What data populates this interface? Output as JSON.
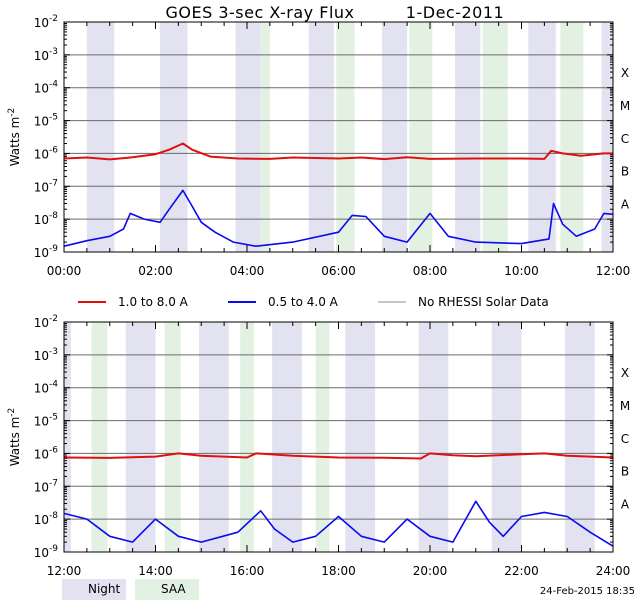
{
  "title": "GOES 3-sec X-ray Flux",
  "date": "1-Dec-2011",
  "footer_date": "24-Feb-2015 18:35",
  "colors": {
    "long": "#e01010",
    "short": "#0a0af0",
    "norhessi": "#8c8c8c",
    "night": "#e2e2f0",
    "saa": "#e3f1e3",
    "grid": "#6a6a6a"
  },
  "legend": {
    "long_label": "1.0 to 8.0 A",
    "short_label": "0.5 to 4.0 A",
    "norhessi_label": "No RHESSI Solar Data",
    "night_label": "Night",
    "saa_label": "SAA"
  },
  "chart_data": [
    {
      "type": "line",
      "panel": "top",
      "title": "GOES 3-sec X-ray Flux   1-Dec-2011",
      "ylabel": "Watts m-2",
      "yscale": "log",
      "ylim": [
        1e-09,
        0.01
      ],
      "xlim_hours": [
        0,
        12
      ],
      "xticks": [
        "00:00",
        "02:00",
        "04:00",
        "06:00",
        "08:00",
        "10:00",
        "12:00"
      ],
      "yticks": [
        {
          "base": "10",
          "exp": "-9"
        },
        {
          "base": "10",
          "exp": "-8"
        },
        {
          "base": "10",
          "exp": "-7"
        },
        {
          "base": "10",
          "exp": "-6"
        },
        {
          "base": "10",
          "exp": "-5"
        },
        {
          "base": "10",
          "exp": "-4"
        },
        {
          "base": "10",
          "exp": "-3"
        },
        {
          "base": "10",
          "exp": "-2"
        }
      ],
      "flare_classes": [
        {
          "label": "X",
          "flux": 0.0003
        },
        {
          "label": "M",
          "flux": 3e-05
        },
        {
          "label": "C",
          "flux": 3e-06
        },
        {
          "label": "B",
          "flux": 3e-07
        },
        {
          "label": "A",
          "flux": 3e-08
        }
      ],
      "night_intervals": [
        [
          0.5,
          1.1
        ],
        [
          2.1,
          2.7
        ],
        [
          3.75,
          4.3
        ],
        [
          5.35,
          5.9
        ],
        [
          6.95,
          7.5
        ],
        [
          8.55,
          9.1
        ],
        [
          10.15,
          10.75
        ],
        [
          11.75,
          12.0
        ]
      ],
      "saa_intervals": [
        [
          4.3,
          4.5
        ],
        [
          5.95,
          6.35
        ],
        [
          7.55,
          8.05
        ],
        [
          9.15,
          9.7
        ],
        [
          10.85,
          11.35
        ]
      ],
      "series": [
        {
          "name": "1.0 to 8.0 A",
          "color_key": "long",
          "points": [
            [
              0,
              7e-07
            ],
            [
              0.5,
              7.5e-07
            ],
            [
              1,
              6.6e-07
            ],
            [
              1.5,
              7.6e-07
            ],
            [
              2,
              9.5e-07
            ],
            [
              2.3,
              1.3e-06
            ],
            [
              2.6,
              2e-06
            ],
            [
              2.8,
              1.3e-06
            ],
            [
              3.2,
              8e-07
            ],
            [
              3.8,
              7e-07
            ],
            [
              4.5,
              6.8e-07
            ],
            [
              5,
              7.5e-07
            ],
            [
              6,
              7e-07
            ],
            [
              6.5,
              7.5e-07
            ],
            [
              7,
              6.7e-07
            ],
            [
              7.5,
              7.6e-07
            ],
            [
              8,
              6.8e-07
            ],
            [
              9,
              7e-07
            ],
            [
              10,
              7e-07
            ],
            [
              10.5,
              6.8e-07
            ],
            [
              10.65,
              1.2e-06
            ],
            [
              10.9,
              1e-06
            ],
            [
              11.3,
              8.5e-07
            ],
            [
              11.8,
              1e-06
            ],
            [
              12,
              1e-06
            ]
          ]
        },
        {
          "name": "0.5 to 4.0 A",
          "color_key": "short",
          "points": [
            [
              0,
              1.5e-09
            ],
            [
              0.5,
              2.2e-09
            ],
            [
              1,
              3e-09
            ],
            [
              1.3,
              5e-09
            ],
            [
              1.45,
              1.5e-08
            ],
            [
              1.75,
              1e-08
            ],
            [
              2.1,
              8e-09
            ],
            [
              2.3,
              2e-08
            ],
            [
              2.6,
              7.5e-08
            ],
            [
              2.8,
              2.5e-08
            ],
            [
              3.0,
              8e-09
            ],
            [
              3.3,
              4e-09
            ],
            [
              3.7,
              2e-09
            ],
            [
              4.2,
              1.5e-09
            ],
            [
              5,
              2e-09
            ],
            [
              6,
              4e-09
            ],
            [
              6.3,
              1.3e-08
            ],
            [
              6.6,
              1.2e-08
            ],
            [
              7,
              3e-09
            ],
            [
              7.5,
              2e-09
            ],
            [
              8,
              1.5e-08
            ],
            [
              8.4,
              3e-09
            ],
            [
              9,
              2e-09
            ],
            [
              10,
              1.8e-09
            ],
            [
              10.6,
              2.5e-09
            ],
            [
              10.7,
              3e-08
            ],
            [
              10.9,
              7e-09
            ],
            [
              11.2,
              3e-09
            ],
            [
              11.6,
              5e-09
            ],
            [
              11.8,
              1.5e-08
            ],
            [
              12,
              1.4e-08
            ]
          ]
        }
      ]
    },
    {
      "type": "line",
      "panel": "bottom",
      "title": "",
      "ylabel": "Watts m-2",
      "yscale": "log",
      "ylim": [
        1e-09,
        0.01
      ],
      "xlim_hours": [
        12,
        24
      ],
      "xticks": [
        "12:00",
        "14:00",
        "16:00",
        "18:00",
        "20:00",
        "22:00",
        "24:00"
      ],
      "yticks": [
        {
          "base": "10",
          "exp": "-9"
        },
        {
          "base": "10",
          "exp": "-8"
        },
        {
          "base": "10",
          "exp": "-7"
        },
        {
          "base": "10",
          "exp": "-6"
        },
        {
          "base": "10",
          "exp": "-5"
        },
        {
          "base": "10",
          "exp": "-4"
        },
        {
          "base": "10",
          "exp": "-3"
        },
        {
          "base": "10",
          "exp": "-2"
        }
      ],
      "flare_classes": [
        {
          "label": "X",
          "flux": 0.0003
        },
        {
          "label": "M",
          "flux": 3e-05
        },
        {
          "label": "C",
          "flux": 3e-06
        },
        {
          "label": "B",
          "flux": 3e-07
        },
        {
          "label": "A",
          "flux": 3e-08
        }
      ],
      "night_intervals": [
        [
          12.0,
          12.15
        ],
        [
          13.35,
          14.0
        ],
        [
          14.95,
          15.6
        ],
        [
          16.55,
          17.2
        ],
        [
          18.15,
          18.8
        ],
        [
          19.75,
          20.4
        ],
        [
          21.35,
          22.0
        ],
        [
          22.95,
          23.6
        ]
      ],
      "saa_intervals": [
        [
          12.6,
          12.95
        ],
        [
          14.2,
          14.55
        ],
        [
          15.85,
          16.15
        ],
        [
          17.5,
          17.8
        ]
      ],
      "series": [
        {
          "name": "1.0 to 8.0 A",
          "color_key": "long",
          "points": [
            [
              12,
              7.5e-07
            ],
            [
              13,
              7.3e-07
            ],
            [
              14,
              8e-07
            ],
            [
              14.5,
              1e-06
            ],
            [
              15,
              8.5e-07
            ],
            [
              16,
              7.5e-07
            ],
            [
              16.2,
              1e-06
            ],
            [
              17,
              8.5e-07
            ],
            [
              18,
              7.5e-07
            ],
            [
              19,
              7.4e-07
            ],
            [
              19.8,
              7e-07
            ],
            [
              20,
              1e-06
            ],
            [
              20.5,
              8.8e-07
            ],
            [
              21,
              8.2e-07
            ],
            [
              22,
              9.5e-07
            ],
            [
              22.5,
              1e-06
            ],
            [
              23,
              8.5e-07
            ],
            [
              24,
              7.5e-07
            ]
          ]
        },
        {
          "name": "0.5 to 4.0 A",
          "color_key": "short",
          "points": [
            [
              12,
              1.5e-08
            ],
            [
              12.5,
              1e-08
            ],
            [
              13,
              3e-09
            ],
            [
              13.5,
              2e-09
            ],
            [
              14,
              1e-08
            ],
            [
              14.5,
              3e-09
            ],
            [
              15,
              2e-09
            ],
            [
              15.8,
              4e-09
            ],
            [
              16.3,
              1.8e-08
            ],
            [
              16.6,
              5e-09
            ],
            [
              17,
              2e-09
            ],
            [
              17.5,
              3e-09
            ],
            [
              18,
              1.2e-08
            ],
            [
              18.5,
              3e-09
            ],
            [
              19,
              2e-09
            ],
            [
              19.5,
              1e-08
            ],
            [
              20,
              3e-09
            ],
            [
              20.5,
              2e-09
            ],
            [
              21,
              3.5e-08
            ],
            [
              21.3,
              8e-09
            ],
            [
              21.6,
              3e-09
            ],
            [
              22,
              1.2e-08
            ],
            [
              22.5,
              1.6e-08
            ],
            [
              23,
              1.2e-08
            ],
            [
              23.5,
              4e-09
            ],
            [
              24,
              1.5e-09
            ]
          ]
        }
      ]
    }
  ]
}
